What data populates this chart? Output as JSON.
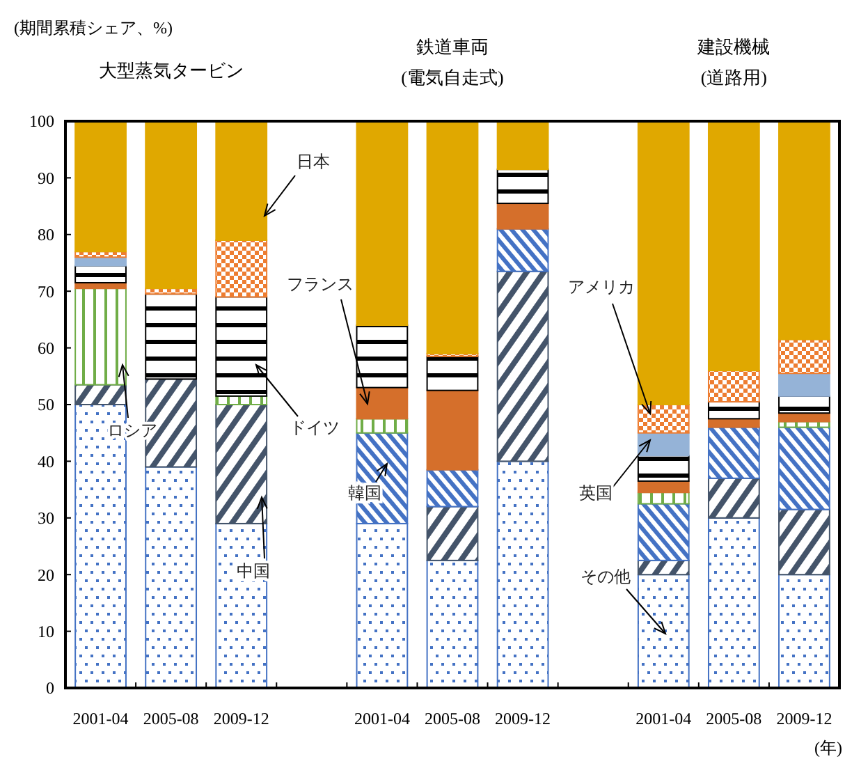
{
  "chart_data": {
    "type": "bar",
    "stacked": true,
    "ylabel": "(期間累積シェア、%)",
    "xlabel": "(年)",
    "categories": [
      "2001-04",
      "2005-08",
      "2009-12",
      null,
      "2001-04",
      "2005-08",
      "2009-12",
      null,
      "2001-04",
      "2005-08",
      "2009-12"
    ],
    "series": [
      {
        "name": "その他",
        "color": "#4472c4",
        "values": [
          50,
          39,
          29,
          null,
          29,
          22.5,
          40,
          null,
          20,
          30,
          20
        ]
      },
      {
        "name": "中国",
        "color": "#44546a",
        "values": [
          3.5,
          15.5,
          21,
          null,
          0,
          9.5,
          33.5,
          null,
          2.5,
          7,
          11.5
        ]
      },
      {
        "name": "韓国",
        "color": "#4472c4",
        "values": [
          0,
          0,
          0,
          null,
          16,
          6.5,
          7.5,
          null,
          10,
          9,
          14.5
        ]
      },
      {
        "name": "ロシア",
        "color": "#70ad47",
        "values": [
          17,
          0,
          1.5,
          null,
          2.5,
          0,
          0,
          null,
          2,
          0,
          1
        ]
      },
      {
        "name": "フランス",
        "color": "#d56f2b",
        "values": [
          1,
          0,
          0,
          null,
          5.5,
          14,
          4.5,
          null,
          2,
          1.5,
          1.5
        ]
      },
      {
        "name": "ドイツ",
        "color": "#000000",
        "values": [
          3,
          15,
          17.5,
          null,
          11,
          6,
          6,
          null,
          4.5,
          3,
          3
        ]
      },
      {
        "name": "英国",
        "color": "#95b3d7",
        "values": [
          1.5,
          0,
          0,
          null,
          0,
          0,
          0,
          null,
          4,
          0,
          4
        ]
      },
      {
        "name": "アメリカ",
        "color": "#ed7d31",
        "values": [
          1,
          1,
          10,
          null,
          0,
          0.5,
          0,
          null,
          5,
          5.5,
          6
        ]
      },
      {
        "name": "日本",
        "color": "#e0a800",
        "values": [
          23,
          29.5,
          21,
          null,
          36,
          41,
          8.5,
          null,
          50,
          44,
          38.5
        ]
      }
    ],
    "ylim": [
      0,
      100
    ],
    "yticks": [
      0,
      10,
      20,
      30,
      40,
      50,
      60,
      70,
      80,
      90,
      100
    ],
    "grid": false,
    "annotations": [
      "大型蒸気タービン",
      "鉄道車両\n(電気自走式)",
      "建設機械\n(道路用)"
    ]
  }
}
